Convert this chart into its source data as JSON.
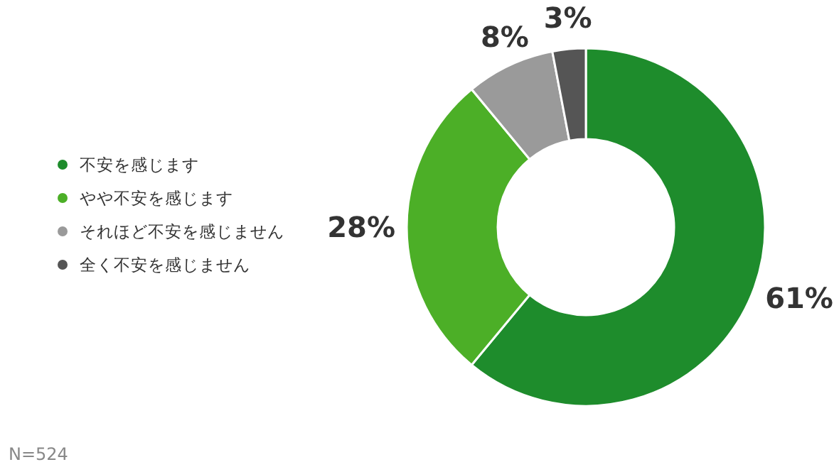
{
  "chart_data": {
    "type": "donut",
    "categories": [
      "不安を感じます",
      "やや不安を感じます",
      "それほど不安を感じません",
      "全く不安を感じません"
    ],
    "values": [
      61,
      28,
      8,
      3
    ],
    "colors": [
      "#1e8c2c",
      "#4caf27",
      "#9a9a9a",
      "#555555"
    ],
    "value_labels": [
      "61%",
      "28%",
      "8%",
      "3%"
    ],
    "legend": "left",
    "annotations": [
      "N=524"
    ]
  }
}
